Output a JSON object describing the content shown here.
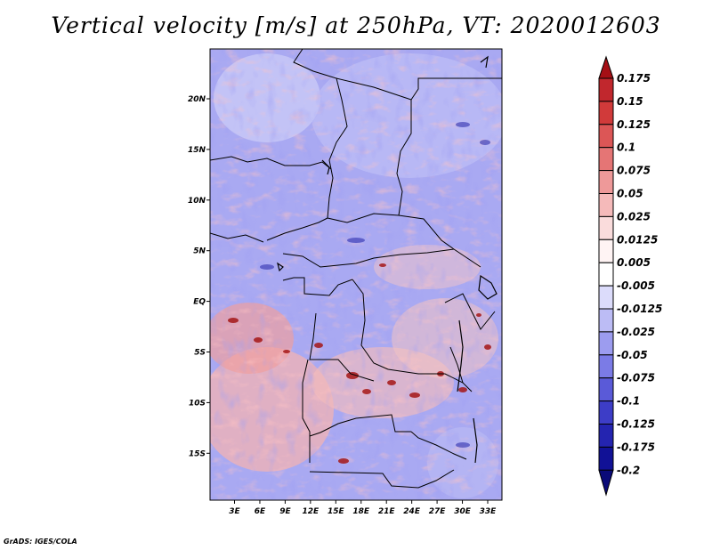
{
  "title": "Vertical velocity [m/s] at 250hPa, VT: 2020012603",
  "footer": "GrADS: IGES/COLA",
  "map": {
    "lat_labels": [
      "20N",
      "15N",
      "10N",
      "5N",
      "EQ",
      "5S",
      "10S",
      "15S"
    ],
    "lon_labels": [
      "3E",
      "6E",
      "9E",
      "12E",
      "15E",
      "18E",
      "21E",
      "24E",
      "27E",
      "30E",
      "33E"
    ]
  },
  "colorbar": {
    "levels": [
      "0.175",
      "0.15",
      "0.125",
      "0.1",
      "0.075",
      "0.05",
      "0.025",
      "0.0125",
      "0.005",
      "-0.005",
      "-0.0125",
      "-0.025",
      "-0.05",
      "-0.075",
      "-0.1",
      "-0.125",
      "-0.175",
      "-0.2"
    ],
    "colors": [
      "#a50f15",
      "#c1272d",
      "#d13a3a",
      "#dc5656",
      "#e57575",
      "#ee9999",
      "#f5baba",
      "#fadcdc",
      "#fff4f4",
      "#ffffff",
      "#dcdcfb",
      "#bcbcf5",
      "#9c9cef",
      "#7b7be6",
      "#5a5ad8",
      "#3d3dc7",
      "#2424b0",
      "#111196",
      "#0a0a78"
    ]
  }
}
